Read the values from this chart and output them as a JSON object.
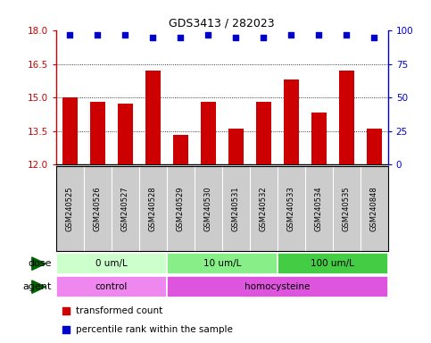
{
  "title": "GDS3413 / 282023",
  "samples": [
    "GSM240525",
    "GSM240526",
    "GSM240527",
    "GSM240528",
    "GSM240529",
    "GSM240530",
    "GSM240531",
    "GSM240532",
    "GSM240533",
    "GSM240534",
    "GSM240535",
    "GSM240848"
  ],
  "bar_values": [
    15.02,
    14.82,
    14.72,
    16.22,
    13.32,
    14.82,
    13.62,
    14.82,
    15.82,
    14.32,
    16.22,
    13.62
  ],
  "percentile_values": [
    97,
    97,
    97,
    95,
    95,
    97,
    95,
    95,
    97,
    97,
    97,
    95
  ],
  "bar_color": "#cc0000",
  "dot_color": "#0000cc",
  "ylim_left": [
    12,
    18
  ],
  "ylim_right": [
    0,
    100
  ],
  "yticks_left": [
    12,
    13.5,
    15,
    16.5,
    18
  ],
  "yticks_right": [
    0,
    25,
    50,
    75,
    100
  ],
  "dotted_lines": [
    13.5,
    15,
    16.5
  ],
  "dose_groups": [
    {
      "label": "0 um/L",
      "start": 0,
      "end": 4,
      "color": "#ccffcc"
    },
    {
      "label": "10 um/L",
      "start": 4,
      "end": 8,
      "color": "#88ee88"
    },
    {
      "label": "100 um/L",
      "start": 8,
      "end": 12,
      "color": "#44cc44"
    }
  ],
  "agent_groups": [
    {
      "label": "control",
      "start": 0,
      "end": 4,
      "color": "#ee88ee"
    },
    {
      "label": "homocysteine",
      "start": 4,
      "end": 12,
      "color": "#dd55dd"
    }
  ],
  "dose_label": "dose",
  "agent_label": "agent",
  "legend_red_label": "transformed count",
  "legend_blue_label": "percentile rank within the sample",
  "bar_width": 0.55,
  "background_color": "#ffffff",
  "plot_bg_color": "#ffffff",
  "grid_color": "#000000",
  "tick_label_color_left": "#cc0000",
  "tick_label_color_right": "#0000cc",
  "xlabel_bg": "#cccccc",
  "arrow_color": "#006600"
}
